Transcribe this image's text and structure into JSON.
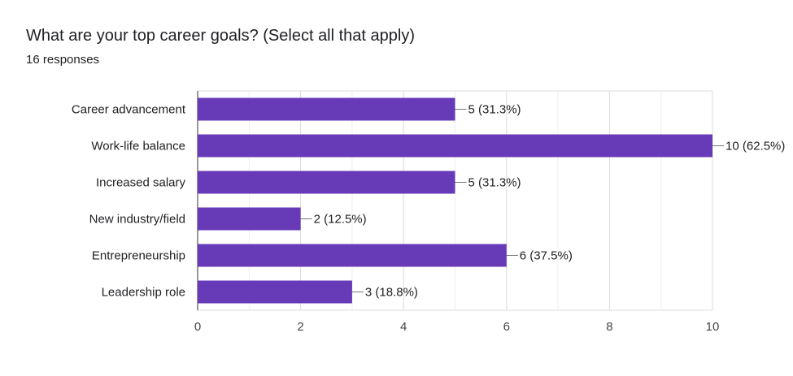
{
  "header": {
    "title": "What are your top career goals? (Select all that apply)",
    "responses": "16 responses"
  },
  "chart_data": {
    "type": "bar",
    "orientation": "horizontal",
    "categories": [
      "Career advancement",
      "Work-life balance",
      "Increased salary",
      "New industry/field",
      "Entrepreneurship",
      "Leadership role"
    ],
    "values": [
      5,
      10,
      5,
      2,
      6,
      3
    ],
    "data_labels": [
      "5 (31.3%)",
      "10 (62.5%)",
      "5 (31.3%)",
      "2 (12.5%)",
      "6 (37.5%)",
      "3 (18.8%)"
    ],
    "xlim": [
      0,
      10
    ],
    "x_ticks": [
      0,
      2,
      4,
      6,
      8,
      10
    ],
    "grid": true,
    "bar_color": "#673ab7",
    "grid_color": "#e6e6e6"
  }
}
